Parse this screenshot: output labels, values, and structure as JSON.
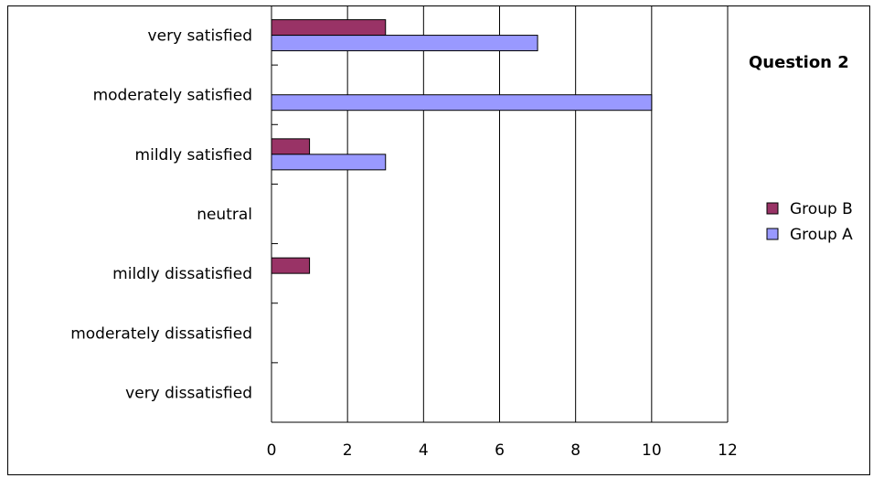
{
  "chart_data": {
    "type": "bar",
    "orientation": "horizontal",
    "title": "Question 2",
    "categories": [
      "very satisfied",
      "moderately satisfied",
      "mildly satisfied",
      "neutral",
      "mildly dissatisfied",
      "moderately dissatisfied",
      "very dissatisfied"
    ],
    "series": [
      {
        "name": "Group B",
        "color": "#993366",
        "values": [
          3,
          0,
          1,
          0,
          1,
          0,
          0
        ]
      },
      {
        "name": "Group A",
        "color": "#9999ff",
        "values": [
          7,
          10,
          3,
          0,
          0,
          0,
          0
        ]
      }
    ],
    "xlim": [
      0,
      12
    ],
    "xticks": [
      "0",
      "2",
      "4",
      "6",
      "8",
      "10",
      "12"
    ],
    "grid": true,
    "legend_position": "right"
  }
}
